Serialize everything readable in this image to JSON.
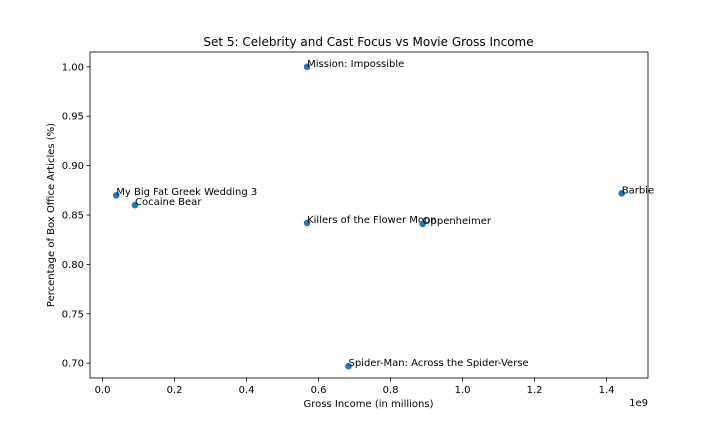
{
  "chart_data": {
    "type": "scatter",
    "title": "Set 5: Celebrity and Cast Focus vs Movie Gross Income",
    "xlabel": "Gross Income (in millions)",
    "ylabel": "Percentage of Box Office Articles (%)",
    "x_offset_text": "1e9",
    "xlim": [
      -0.035,
      1.515
    ],
    "ylim": [
      0.685,
      1.015
    ],
    "x_ticks": [
      0.0,
      0.2,
      0.4,
      0.6,
      0.8,
      1.0,
      1.2,
      1.4
    ],
    "x_tick_labels": [
      "0.0",
      "0.2",
      "0.4",
      "0.6",
      "0.8",
      "1.0",
      "1.2",
      "1.4"
    ],
    "y_ticks": [
      0.7,
      0.75,
      0.8,
      0.85,
      0.9,
      0.95,
      1.0
    ],
    "y_tick_labels": [
      "0.70",
      "0.75",
      "0.80",
      "0.85",
      "0.90",
      "0.95",
      "1.00"
    ],
    "grid": false,
    "legend": "none",
    "marker_color": "#1f77b4",
    "points": [
      {
        "label": "Mission: Impossible",
        "x": 0.568,
        "y": 1.0
      },
      {
        "label": "My Big Fat Greek Wedding 3",
        "x": 0.038,
        "y": 0.87
      },
      {
        "label": "Cocaine Bear",
        "x": 0.09,
        "y": 0.86
      },
      {
        "label": "Barbie",
        "x": 1.442,
        "y": 0.872
      },
      {
        "label": "Killers of the Flower Moon",
        "x": 0.568,
        "y": 0.842
      },
      {
        "label": "Oppenheimer",
        "x": 0.889,
        "y": 0.841
      },
      {
        "label": "Spider-Man: Across the Spider-Verse",
        "x": 0.683,
        "y": 0.697
      }
    ]
  }
}
